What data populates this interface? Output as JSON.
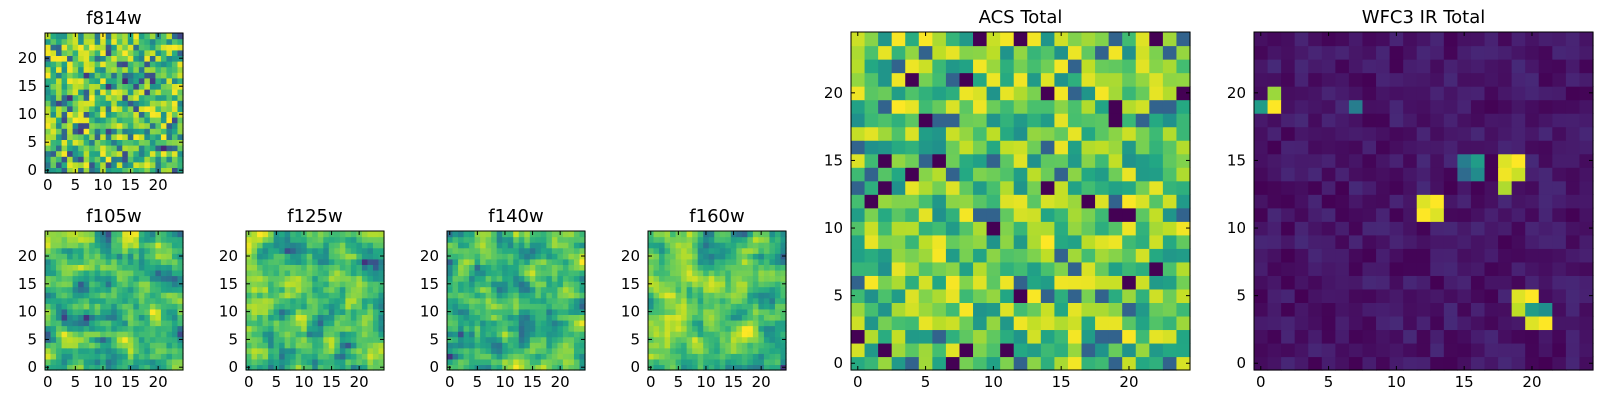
{
  "chart_data": [
    {
      "id": "f814w",
      "type": "heatmap",
      "title": "f814w",
      "colormap": "viridis",
      "grid_size": 25,
      "xlim": [
        0,
        25
      ],
      "ylim": [
        0,
        25
      ],
      "xticks": [
        0,
        5,
        10,
        15,
        20
      ],
      "yticks": [
        0,
        5,
        10,
        15,
        20
      ],
      "xtick_labels": [
        "0",
        "5",
        "10",
        "15",
        "20"
      ],
      "ytick_labels": [
        "0",
        "5",
        "10",
        "15",
        "20"
      ],
      "seed": 11,
      "style": "noise"
    },
    {
      "id": "f105w",
      "type": "heatmap",
      "title": "f105w",
      "colormap": "viridis",
      "grid_size": 25,
      "xlim": [
        0,
        25
      ],
      "ylim": [
        0,
        25
      ],
      "xticks": [
        0,
        5,
        10,
        15,
        20
      ],
      "yticks": [
        0,
        5,
        10,
        15,
        20
      ],
      "xtick_labels": [
        "0",
        "5",
        "10",
        "15",
        "20"
      ],
      "ytick_labels": [
        "0",
        "5",
        "10",
        "15",
        "20"
      ],
      "seed": 23,
      "style": "smooth"
    },
    {
      "id": "f125w",
      "type": "heatmap",
      "title": "f125w",
      "colormap": "viridis",
      "grid_size": 25,
      "xlim": [
        0,
        25
      ],
      "ylim": [
        0,
        25
      ],
      "xticks": [
        0,
        5,
        10,
        15,
        20
      ],
      "yticks": [
        0,
        5,
        10,
        15,
        20
      ],
      "xtick_labels": [
        "0",
        "5",
        "10",
        "15",
        "20"
      ],
      "ytick_labels": [
        "0",
        "5",
        "10",
        "15",
        "20"
      ],
      "seed": 37,
      "style": "smooth"
    },
    {
      "id": "f140w",
      "type": "heatmap",
      "title": "f140w",
      "colormap": "viridis",
      "grid_size": 25,
      "xlim": [
        0,
        25
      ],
      "ylim": [
        0,
        25
      ],
      "xticks": [
        0,
        5,
        10,
        15,
        20
      ],
      "yticks": [
        0,
        5,
        10,
        15,
        20
      ],
      "xtick_labels": [
        "0",
        "5",
        "10",
        "15",
        "20"
      ],
      "ytick_labels": [
        "0",
        "5",
        "10",
        "15",
        "20"
      ],
      "seed": 41,
      "style": "smooth"
    },
    {
      "id": "f160w",
      "type": "heatmap",
      "title": "f160w",
      "colormap": "viridis",
      "grid_size": 25,
      "xlim": [
        0,
        25
      ],
      "ylim": [
        0,
        25
      ],
      "xticks": [
        0,
        5,
        10,
        15,
        20
      ],
      "yticks": [
        0,
        5,
        10,
        15,
        20
      ],
      "xtick_labels": [
        "0",
        "5",
        "10",
        "15",
        "20"
      ],
      "ytick_labels": [
        "0",
        "5",
        "10",
        "15",
        "20"
      ],
      "seed": 53,
      "style": "smooth"
    },
    {
      "id": "acs_total",
      "type": "heatmap",
      "title": "ACS Total",
      "colormap": "viridis",
      "grid_size": 25,
      "xlim": [
        0,
        25
      ],
      "ylim": [
        0,
        25
      ],
      "xticks": [
        0,
        5,
        10,
        15,
        20
      ],
      "yticks": [
        0,
        5,
        10,
        15,
        20
      ],
      "xtick_labels": [
        "0",
        "5",
        "10",
        "15",
        "20"
      ],
      "ytick_labels": [
        "0",
        "5",
        "10",
        "15",
        "20"
      ],
      "seed": 67,
      "style": "acs"
    },
    {
      "id": "wfc3_ir_total",
      "type": "heatmap",
      "title": "WFC3 IR Total",
      "colormap": "viridis",
      "grid_size": 25,
      "xlim": [
        0,
        25
      ],
      "ylim": [
        0,
        25
      ],
      "xticks": [
        0,
        5,
        10,
        15,
        20
      ],
      "yticks": [
        0,
        5,
        10,
        15,
        20
      ],
      "xtick_labels": [
        "0",
        "5",
        "10",
        "15",
        "20"
      ],
      "ytick_labels": [
        "0",
        "5",
        "10",
        "15",
        "20"
      ],
      "seed": 79,
      "style": "sparse",
      "bright_pixels": [
        {
          "x": 0,
          "y": 19,
          "v": 0.55
        },
        {
          "x": 1,
          "y": 19,
          "v": 1.0
        },
        {
          "x": 1,
          "y": 20,
          "v": 0.85
        },
        {
          "x": 7,
          "y": 19,
          "v": 0.42
        },
        {
          "x": 15,
          "y": 15,
          "v": 0.42
        },
        {
          "x": 16,
          "y": 15,
          "v": 0.55
        },
        {
          "x": 16,
          "y": 14,
          "v": 0.48
        },
        {
          "x": 15,
          "y": 14,
          "v": 0.35
        },
        {
          "x": 18,
          "y": 15,
          "v": 0.95
        },
        {
          "x": 19,
          "y": 15,
          "v": 1.0
        },
        {
          "x": 18,
          "y": 14,
          "v": 0.98
        },
        {
          "x": 19,
          "y": 14,
          "v": 0.92
        },
        {
          "x": 18,
          "y": 13,
          "v": 0.88
        },
        {
          "x": 12,
          "y": 12,
          "v": 0.95
        },
        {
          "x": 13,
          "y": 12,
          "v": 1.0
        },
        {
          "x": 12,
          "y": 11,
          "v": 1.0
        },
        {
          "x": 13,
          "y": 11,
          "v": 0.95
        },
        {
          "x": 19,
          "y": 5,
          "v": 0.95
        },
        {
          "x": 20,
          "y": 5,
          "v": 1.0
        },
        {
          "x": 19,
          "y": 4,
          "v": 0.9
        },
        {
          "x": 20,
          "y": 4,
          "v": 0.55
        },
        {
          "x": 21,
          "y": 4,
          "v": 0.5
        },
        {
          "x": 20,
          "y": 3,
          "v": 0.95
        },
        {
          "x": 21,
          "y": 3,
          "v": 1.0
        }
      ]
    }
  ]
}
